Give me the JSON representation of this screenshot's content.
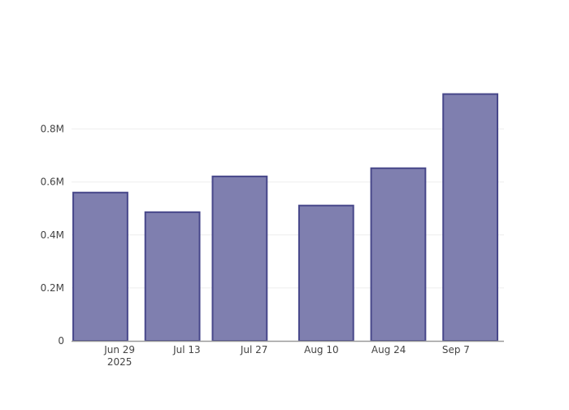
{
  "chart_data": {
    "type": "bar",
    "title": "",
    "xlabel": "",
    "ylabel": "",
    "x": [
      "2025-06-25",
      "2025-07-10",
      "2025-07-24",
      "2025-08-11",
      "2025-08-26",
      "2025-09-10"
    ],
    "values": [
      560000,
      486000,
      621000,
      511000,
      652000,
      932000
    ],
    "bar_width_days": 11.3,
    "xlim": [
      "2025-06-19",
      "2025-09-17"
    ],
    "ylim": [
      0,
      980000
    ],
    "x_ticks": [
      {
        "date": "2025-06-29",
        "label": "Jun 29",
        "sublabel": "2025"
      },
      {
        "date": "2025-07-13",
        "label": "Jul 13"
      },
      {
        "date": "2025-07-27",
        "label": "Jul 27"
      },
      {
        "date": "2025-08-10",
        "label": "Aug 10"
      },
      {
        "date": "2025-08-24",
        "label": "Aug 24"
      },
      {
        "date": "2025-09-07",
        "label": "Sep 7"
      }
    ],
    "y_ticks": [
      {
        "value": 0,
        "label": "0"
      },
      {
        "value": 200000,
        "label": "0.2M"
      },
      {
        "value": 400000,
        "label": "0.4M"
      },
      {
        "value": 600000,
        "label": "0.6M"
      },
      {
        "value": 800000,
        "label": "0.8M"
      }
    ],
    "grid": true,
    "colors": {
      "fill": "#7f7faf",
      "stroke": "#47478a",
      "grid": "#eeeeee",
      "axis": "#999999"
    }
  }
}
